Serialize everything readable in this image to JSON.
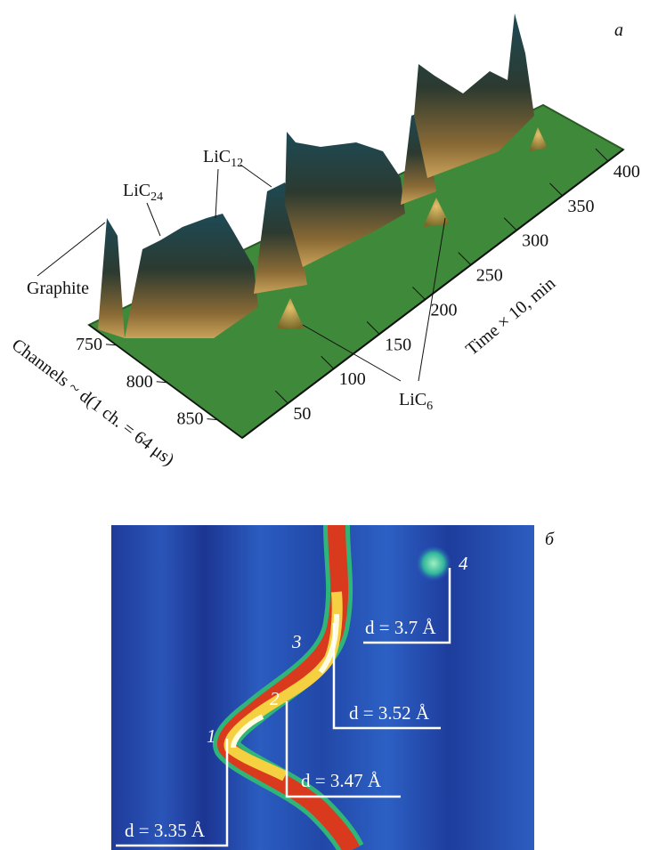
{
  "panel_a": {
    "label": "a",
    "peak_labels": {
      "graphite": "Graphite",
      "lic24": {
        "base": "LiC",
        "sub": "24"
      },
      "lic12": {
        "base": "LiC",
        "sub": "12"
      },
      "lic6": {
        "base": "LiC",
        "sub": "6"
      }
    },
    "channels_axis": {
      "title": "Channels ~ d(1 ch. = 64 μs)",
      "ticks": [
        750,
        800,
        850
      ]
    },
    "time_axis": {
      "title": "Time × 10, min",
      "ticks": [
        50,
        100,
        150,
        200,
        250,
        300,
        350,
        400
      ]
    }
  },
  "panel_b": {
    "label": "б",
    "peaks": [
      {
        "number": "1",
        "d": "d = 3.35 Å"
      },
      {
        "number": "2",
        "d": "d = 3.47 Å"
      },
      {
        "number": "3",
        "d": "d = 3.52 Å"
      },
      {
        "number": "4",
        "d": "d = 3.7 Å"
      }
    ]
  }
}
